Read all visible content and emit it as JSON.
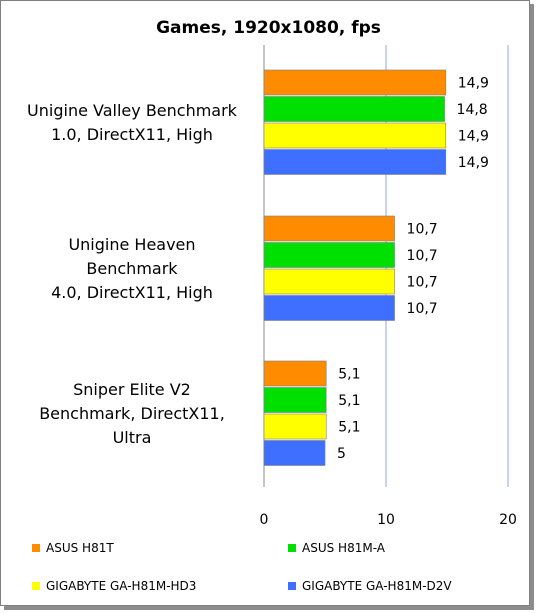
{
  "chart_data": {
    "type": "bar",
    "orientation": "horizontal",
    "title": "Games, 1920x1080, fps",
    "categories": [
      [
        "Unigine Valley Benchmark",
        "1.0, DirectX11, High"
      ],
      [
        "Unigine Heaven",
        "Benchmark",
        "4.0, DirectX11, High"
      ],
      [
        "Sniper Elite V2",
        "Benchmark, DirectX11,",
        "Ultra"
      ]
    ],
    "series": [
      {
        "name": "ASUS H81T",
        "color": "#ff8c00",
        "values": [
          14.9,
          10.7,
          5.1
        ],
        "labels": [
          "14,9",
          "10,7",
          "5,1"
        ]
      },
      {
        "name": "ASUS H81M-A",
        "color": "#00e000",
        "values": [
          14.8,
          10.7,
          5.1
        ],
        "labels": [
          "14,8",
          "10,7",
          "5,1"
        ]
      },
      {
        "name": "GIGABYTE GA-H81M-HD3",
        "color": "#ffff00",
        "values": [
          14.9,
          10.7,
          5.1
        ],
        "labels": [
          "14,9",
          "10,7",
          "5,1"
        ]
      },
      {
        "name": "GIGABYTE GA-H81M-D2V",
        "color": "#3f6fff",
        "values": [
          14.9,
          10.7,
          5.0
        ],
        "labels": [
          "14,9",
          "10,7",
          "5"
        ]
      }
    ],
    "xlim": [
      0,
      20
    ],
    "xticks": [
      0,
      10,
      20
    ],
    "xtick_labels": [
      "0",
      "10",
      "20"
    ],
    "grid": true,
    "legend_position": "bottom"
  }
}
